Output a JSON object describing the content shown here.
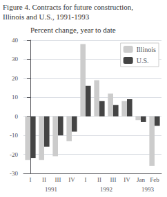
{
  "chart_data": {
    "type": "bar",
    "title": "Figure 4. Contracts for future construction,",
    "subtitle": "Illinois and U.S., 1991-1993",
    "ylabel": "Percent change, year to date",
    "categories": [
      "I",
      "II",
      "III",
      "IV",
      "I",
      "II",
      "III",
      "IV",
      "Jan",
      "Feb"
    ],
    "series": [
      {
        "name": "Illinois",
        "color": "#cccccc",
        "values": [
          -23,
          -23,
          -21,
          -13,
          38,
          19,
          12,
          8,
          -2,
          -26
        ]
      },
      {
        "name": "U.S.",
        "color": "#444444",
        "values": [
          -22,
          -16,
          -10,
          -8,
          16,
          8,
          6,
          9,
          -3,
          -5
        ]
      }
    ],
    "ylim": [
      -30,
      40
    ],
    "yticks": [
      -30,
      -20,
      -10,
      0,
      10,
      20,
      30,
      40
    ],
    "grid": true,
    "legend": "upper right",
    "annotations": [
      {
        "text": "1991",
        "x": 1.5
      },
      {
        "text": "1992",
        "x": 5.5
      },
      {
        "text": "1993",
        "x": 8.5
      }
    ]
  }
}
